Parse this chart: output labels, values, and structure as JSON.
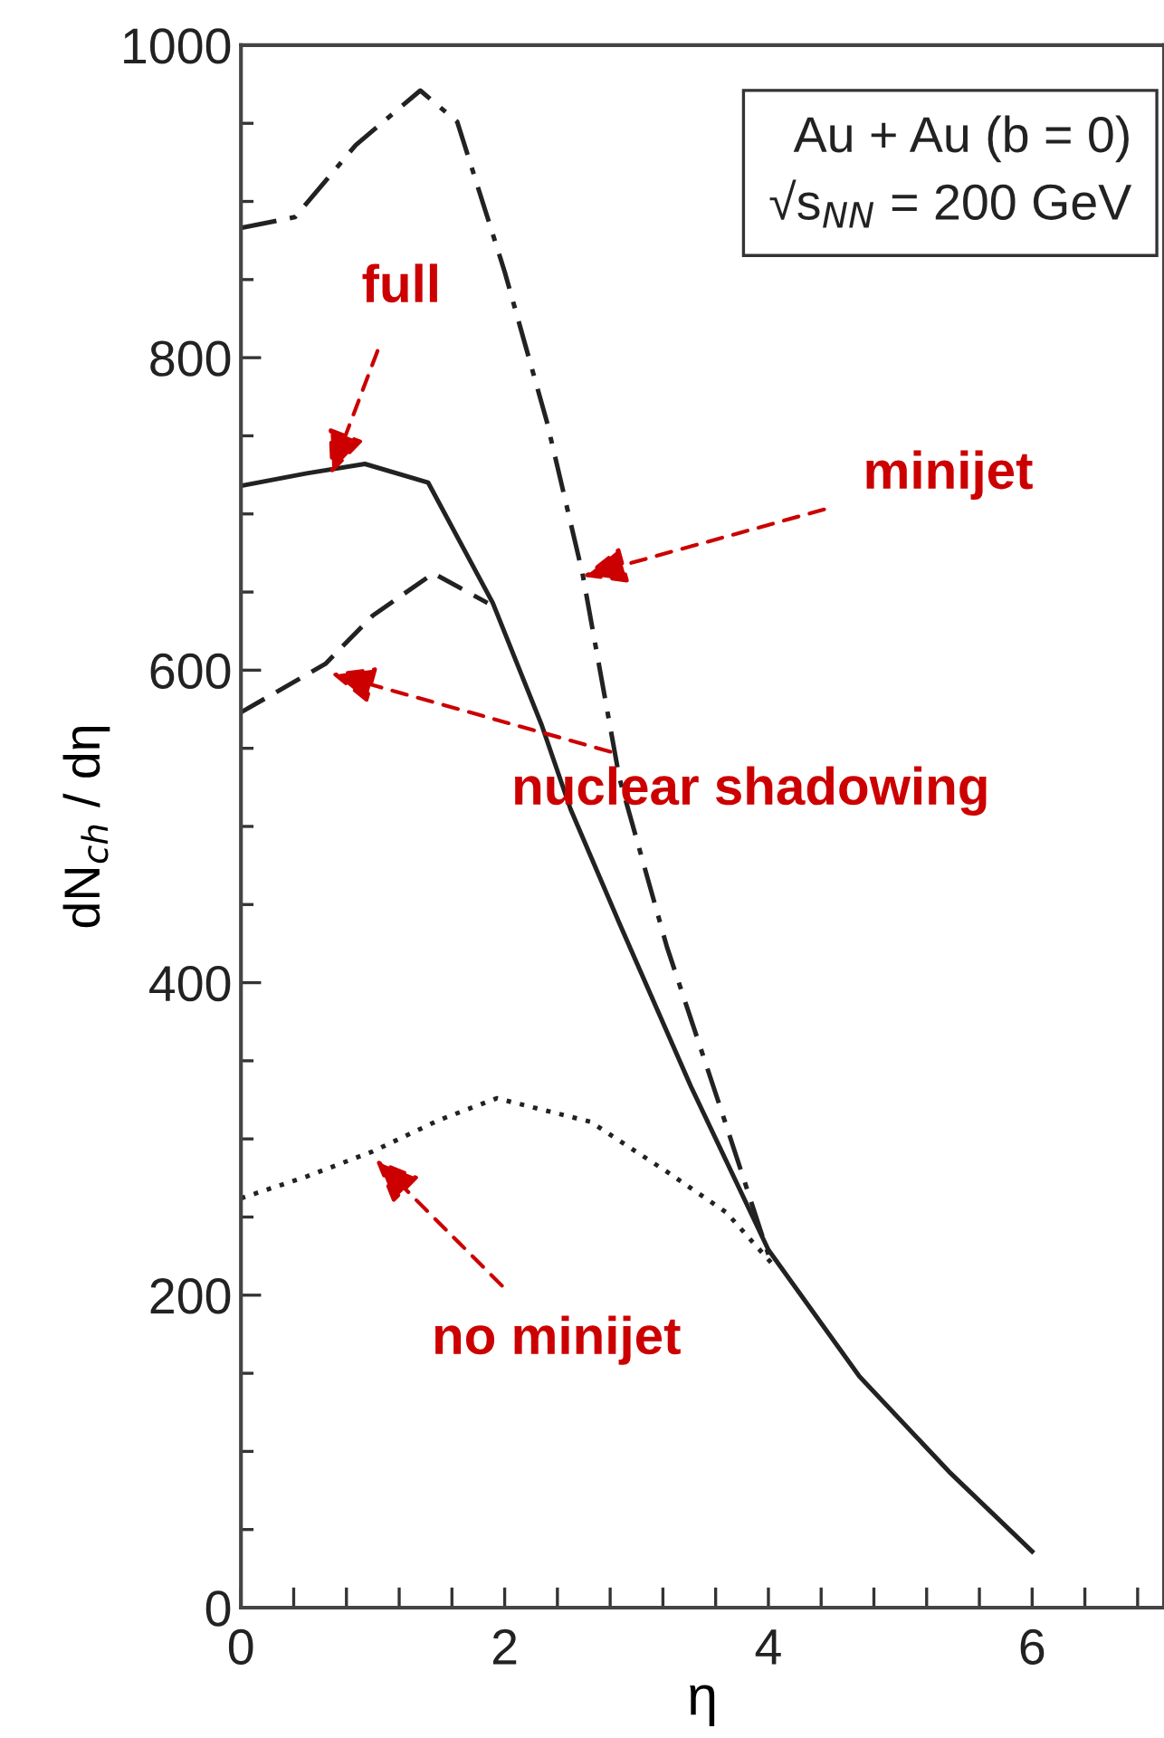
{
  "chart_data": {
    "type": "line",
    "xlabel": "η",
    "ylabel": "dN$_{ch}$ / dη",
    "xlim": [
      0,
      7
    ],
    "ylim": [
      0,
      1000
    ],
    "xticks": [
      0,
      {
        "value": 0.4,
        "label": null
      },
      {
        "value": 0.8,
        "label": null
      },
      {
        "value": 1.2,
        "label": null
      },
      {
        "value": 1.6,
        "label": null
      },
      2,
      {
        "value": 2.4,
        "label": null
      },
      {
        "value": 2.8,
        "label": null
      },
      {
        "value": 3.2,
        "label": null
      },
      {
        "value": 3.6,
        "label": null
      },
      4,
      {
        "value": 4.4,
        "label": null
      },
      {
        "value": 4.8,
        "label": null
      },
      {
        "value": 5.2,
        "label": null
      },
      {
        "value": 5.6,
        "label": null
      },
      6,
      {
        "value": 6.4,
        "label": null
      },
      {
        "value": 6.8,
        "label": null
      }
    ],
    "yticks": [
      0,
      {
        "value": 50,
        "label": null
      },
      {
        "value": 100,
        "label": null
      },
      {
        "value": 150,
        "label": null
      },
      200,
      {
        "value": 250,
        "label": null
      },
      {
        "value": 300,
        "label": null
      },
      {
        "value": 350,
        "label": null
      },
      400,
      {
        "value": 450,
        "label": null
      },
      {
        "value": 500,
        "label": null
      },
      {
        "value": 550,
        "label": null
      },
      600,
      {
        "value": 650,
        "label": null
      },
      {
        "value": 700,
        "label": null
      },
      {
        "value": 750,
        "label": null
      },
      800,
      {
        "value": 850,
        "label": null
      },
      {
        "value": 900,
        "label": null
      },
      {
        "value": 950,
        "label": null
      },
      1000
    ],
    "grid": false,
    "legend": false,
    "marker": "none",
    "series": [
      {
        "color": "#222222",
        "line_style": "solid",
        "x": [
          0,
          0.5,
          0.94,
          1.42,
          1.91,
          2.28,
          2.5,
          2.87,
          3.41,
          4.0,
          4.69,
          5.37,
          6.0
        ],
        "values": [
          718,
          726,
          732,
          720,
          643,
          565,
          511,
          438,
          334,
          229,
          148,
          87,
          36
        ]
      },
      {
        "color": "#222222",
        "line_style": "dashed",
        "x": [
          0,
          0.64,
          1.0,
          1.46,
          1.87
        ],
        "values": [
          573,
          604,
          635,
          662,
          643
        ]
      },
      {
        "color": "#222222",
        "line_style": "dashdot",
        "x": [
          0,
          0.41,
          0.87,
          1.36,
          1.64,
          2.0,
          2.32,
          2.59,
          2.87,
          3.23,
          3.64,
          4.0
        ],
        "values": [
          883,
          890,
          936,
          971,
          951,
          855,
          759,
          662,
          531,
          423,
          319,
          226
        ]
      },
      {
        "color": "#222222",
        "line_style": "dotted",
        "x": [
          0,
          0.5,
          1.0,
          1.5,
          1.94,
          2.65,
          3.23,
          3.68,
          4.05
        ],
        "values": [
          262,
          276,
          292,
          312,
          326,
          311,
          279,
          253,
          218
        ]
      }
    ],
    "annotations": [
      {
        "text": "full",
        "x": 0.68,
        "y": 725
      },
      {
        "text": "minijet",
        "x": 2.59,
        "y": 660
      },
      {
        "text": "nuclear shadowing",
        "x": 0.68,
        "y": 598
      },
      {
        "text": "no minijet",
        "x": 1.02,
        "y": 287
      },
      "Au + Au (b = 0)",
      "√s$_{NN}$ = 200 GeV"
    ]
  }
}
